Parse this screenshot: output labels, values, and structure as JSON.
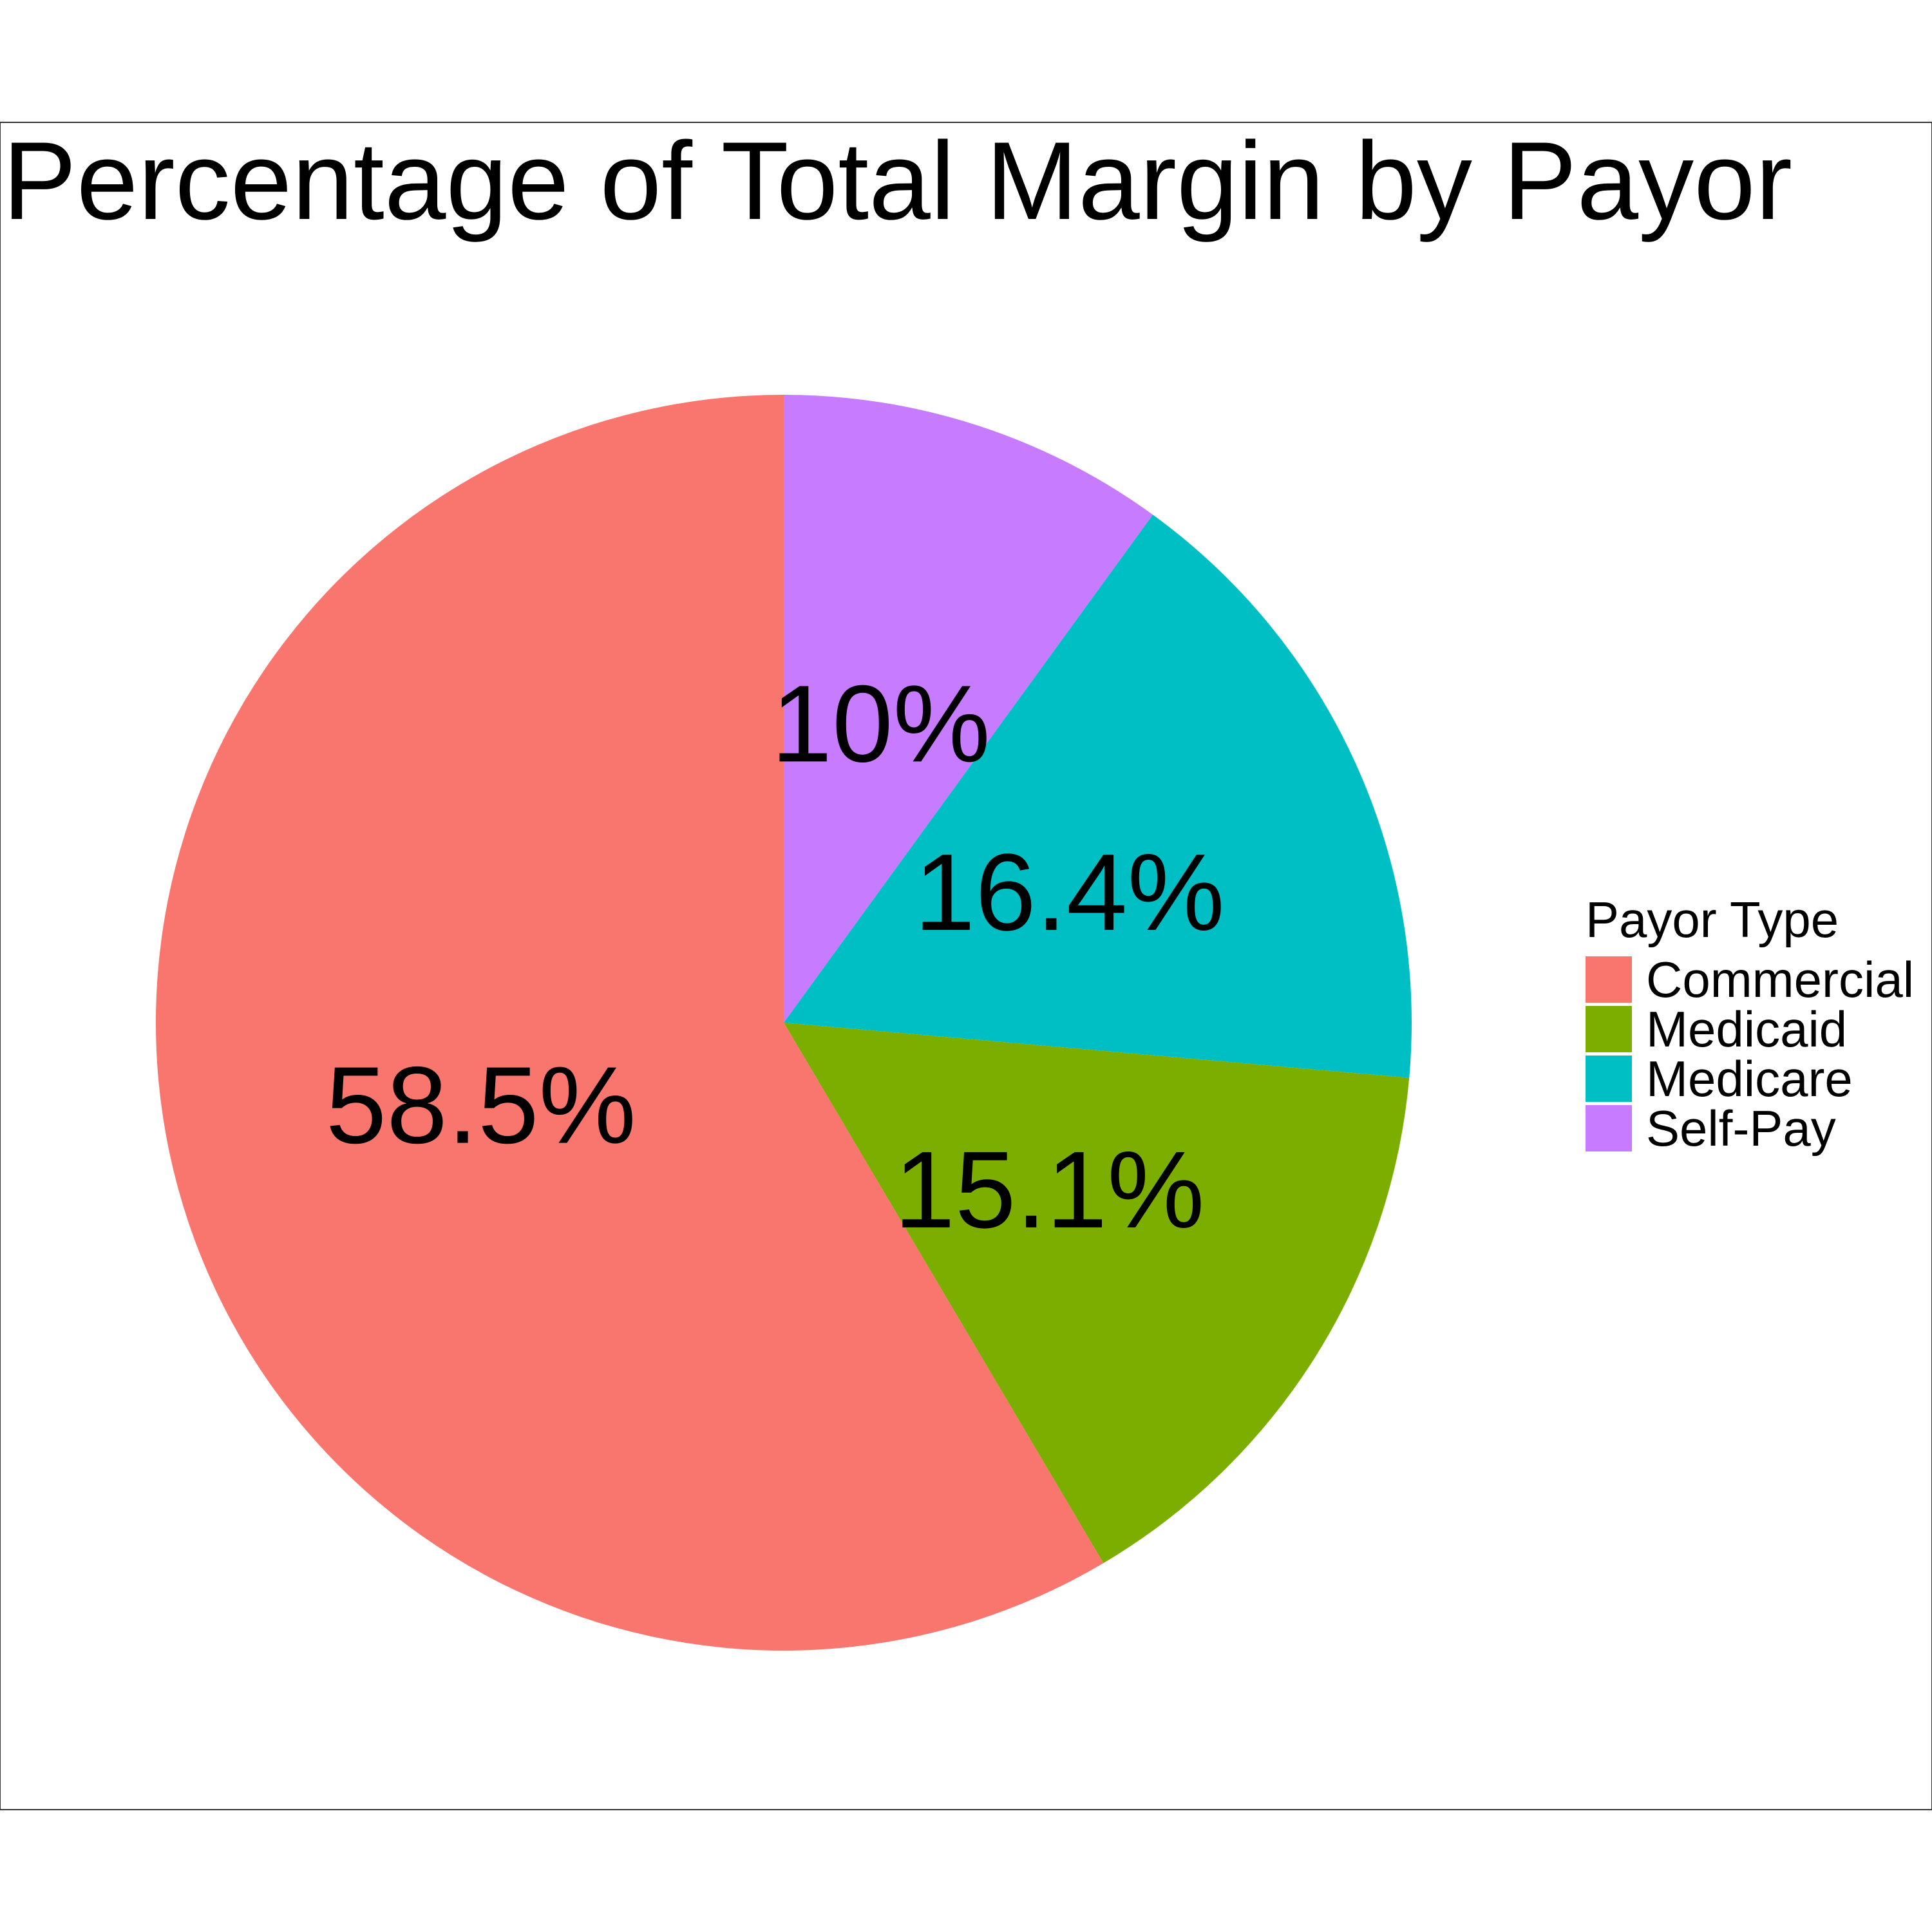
{
  "chart_data": {
    "type": "pie",
    "title": "Percentage of Total Margin by Payor",
    "legend": {
      "title": "Payor Type",
      "placement": "right"
    },
    "slices": [
      {
        "name": "Commercial",
        "value": 58.5,
        "label": "58.5%",
        "color": "#F8766D"
      },
      {
        "name": "Medicaid",
        "value": 15.1,
        "label": "15.1%",
        "color": "#7CAE00"
      },
      {
        "name": "Medicare",
        "value": 16.4,
        "label": "16.4%",
        "color": "#00BFC4"
      },
      {
        "name": "Self-Pay",
        "value": 10.0,
        "label": "10%",
        "color": "#C77CFF"
      }
    ]
  }
}
